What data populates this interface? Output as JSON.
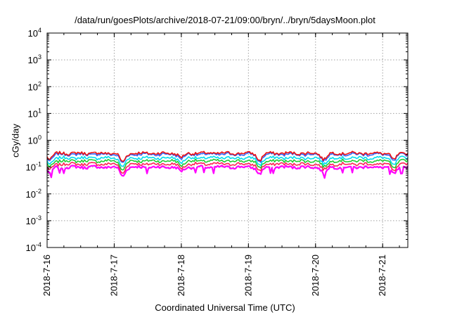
{
  "chart_data": {
    "type": "line",
    "title": "/data/run/goesPlots/archive/2018-07-21/09:00/bryn/../bryn/5daysMoon.plot",
    "xlabel": "Coordinated Universal Time (UTC)",
    "ylabel": "cGy/day",
    "yscale": "log",
    "ylim": [
      0.0001,
      10000
    ],
    "yticks": [
      {
        "value": 0.0001,
        "base": "10",
        "exp": "-4"
      },
      {
        "value": 0.001,
        "base": "10",
        "exp": "-3"
      },
      {
        "value": 0.01,
        "base": "10",
        "exp": "-2"
      },
      {
        "value": 0.1,
        "base": "10",
        "exp": "-1"
      },
      {
        "value": 1,
        "base": "10",
        "exp": "0"
      },
      {
        "value": 10,
        "base": "10",
        "exp": "1"
      },
      {
        "value": 100,
        "base": "10",
        "exp": "2"
      },
      {
        "value": 1000,
        "base": "10",
        "exp": "3"
      },
      {
        "value": 10000,
        "base": "10",
        "exp": "4"
      }
    ],
    "x_unit": "day",
    "xlim": [
      "2018-07-16T00:00",
      "2018-07-21T09:00"
    ],
    "xticks": [
      "2018-7-16",
      "2018-7-17",
      "2018-7-18",
      "2018-7-19",
      "2018-7-20",
      "2018-7-21"
    ],
    "grid": true,
    "series_colors": [
      "#ff00ff",
      "#ff2255",
      "#22cc33",
      "#00ddee",
      "#3366ff",
      "#ee1111"
    ],
    "series_levels_cGy_per_day": [
      0.1,
      0.13,
      0.17,
      0.22,
      0.3,
      0.33
    ],
    "dips": [
      {
        "date": "2018-07-16T01:00",
        "factor": 0.6
      },
      {
        "date": "2018-07-17T03:00",
        "factor": 0.45
      },
      {
        "date": "2018-07-18T00:00",
        "factor": 0.7
      },
      {
        "date": "2018-07-19T04:00",
        "factor": 0.55
      },
      {
        "date": "2018-07-20T03:00",
        "factor": 0.6
      },
      {
        "date": "2018-07-21T04:00",
        "factor": 0.55
      }
    ]
  }
}
